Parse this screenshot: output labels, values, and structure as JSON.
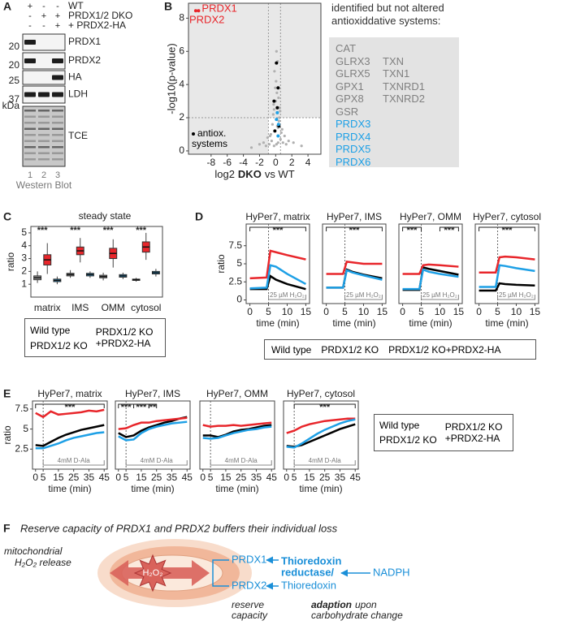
{
  "panel_labels": [
    "A",
    "B",
    "C",
    "D",
    "E",
    "F"
  ],
  "western_blot": {
    "conditions": [
      {
        "label": "WT",
        "signs": [
          "+",
          "-",
          "-"
        ]
      },
      {
        "label": "PRDX1/2 DKO",
        "signs": [
          "-",
          "+",
          "+"
        ]
      },
      {
        "label": "+ PRDX2-HA",
        "signs": [
          "-",
          "-",
          "+"
        ]
      }
    ],
    "bands": [
      {
        "label": "PRDX1",
        "marker": 20,
        "present": [
          true,
          false,
          false
        ]
      },
      {
        "label": "PRDX2",
        "marker": 20,
        "present": [
          true,
          false,
          true
        ]
      },
      {
        "label": "HA",
        "marker": 25,
        "present": [
          false,
          false,
          true
        ]
      },
      {
        "label": "LDH",
        "marker": 37,
        "present": [
          true,
          true,
          true
        ]
      },
      {
        "label": "TCE",
        "present": [
          true,
          true,
          true
        ]
      }
    ],
    "marker_unit": "kDa",
    "lanes": [
      1,
      2,
      3
    ],
    "caption": "Western Blot"
  },
  "antioxidant_list": {
    "title": "identified but not altered antioxiddative systems:",
    "columns": [
      [
        "CAT",
        "GLRX3",
        "GLRX5",
        "GPX1",
        "GPX8",
        "GSR"
      ],
      [
        "TXN",
        "TXN1",
        "TXNRD1",
        "TXNRD2"
      ]
    ],
    "highlighted": [
      "PRDX3",
      "PRDX4",
      "PRDX5",
      "PRDX6"
    ]
  },
  "chart_data": [
    {
      "type": "scatter",
      "xlabel": [
        "log2",
        "DKO",
        "vs WT"
      ],
      "ylabel": "-log10(p-value)",
      "xlim": [
        -10.8,
        5.6
      ],
      "ylim": [
        -0.2,
        8.9
      ],
      "xticks": [
        -8,
        -6,
        -4,
        -2,
        0,
        2,
        4
      ],
      "yticks": [
        0,
        2,
        4,
        6,
        8
      ],
      "thresholds": {
        "x": [
          -0.9,
          0.6
        ],
        "y": 2
      },
      "series": [
        {
          "color": "#b0b0b0",
          "x": [
            -0.2,
            0.1,
            0.3,
            -0.5,
            0.6,
            -0.8,
            0.9,
            -1.2,
            1.3,
            -0.1,
            0.2,
            0.4,
            -0.3,
            0.5,
            -0.6,
            0.7,
            -1.0,
            1.1,
            -1.5,
            1.6,
            0.0,
            0.15,
            -0.25,
            0.35,
            -0.4,
            0.45,
            0.05,
            -0.15,
            0.25,
            -0.05,
            0.55,
            -0.7,
            0.8,
            -2.0,
            2.2,
            0.1,
            -0.2,
            0.3,
            3.2,
            -3.0
          ],
          "values": [
            0.3,
            0.4,
            0.5,
            0.6,
            0.7,
            0.4,
            0.5,
            0.3,
            0.4,
            1.2,
            1.5,
            1.8,
            2.2,
            2.6,
            1.0,
            1.1,
            0.8,
            0.9,
            0.5,
            0.6,
            3.0,
            3.5,
            2.8,
            3.2,
            1.6,
            2.0,
            4.2,
            4.8,
            5.4,
            3.8,
            2.4,
            0.9,
            1.3,
            0.4,
            0.5,
            6.0,
            2.5,
            1.4,
            0.3,
            0.2
          ]
        },
        {
          "name": "antiox. systems",
          "color": "#000000",
          "x": [
            0.1,
            0.3,
            -0.2,
            0.4,
            0.2,
            -0.1
          ],
          "values": [
            5.3,
            3.8,
            3.0,
            1.5,
            2.6,
            1.2
          ]
        },
        {
          "color": "#1ea0e6",
          "x": [
            0.2,
            0.35,
            0.1,
            0.3
          ],
          "values": [
            2.3,
            1.6,
            1.9,
            0.9
          ]
        },
        {
          "color": "#e8262b",
          "names": [
            "PRDX1",
            "PRDX2"
          ],
          "x": [
            -9.9,
            -9.55
          ],
          "values": [
            8.45,
            8.45
          ]
        }
      ]
    },
    {
      "type": "box",
      "title": "steady state",
      "ylabel": "ratio",
      "categories": [
        "matrix",
        "IMS",
        "OMM",
        "cytosol"
      ],
      "ylim": [
        0,
        5.5
      ],
      "yticks": [
        1,
        2,
        3,
        4,
        5
      ],
      "annotations": [
        "***",
        "***",
        "***",
        "***"
      ],
      "series": [
        {
          "name": "Wild type",
          "color": "#000000",
          "box_color": "#9a9a9a",
          "boxes": [
            {
              "low": 1.1,
              "q1": 1.35,
              "median": 1.5,
              "q3": 1.65,
              "high": 2.0
            },
            {
              "low": 1.5,
              "q1": 1.65,
              "median": 1.75,
              "q3": 1.85,
              "high": 2.1
            },
            {
              "low": 1.3,
              "q1": 1.5,
              "median": 1.6,
              "q3": 1.7,
              "high": 1.9
            },
            {
              "low": 1.2,
              "q1": 1.3,
              "median": 1.35,
              "q3": 1.4,
              "high": 1.5
            }
          ]
        },
        {
          "name": "PRDX1/2 KO",
          "color": "#e8262b",
          "box_color": "#e8262b",
          "boxes": [
            {
              "low": 1.8,
              "q1": 2.5,
              "median": 2.9,
              "q3": 3.3,
              "high": 4.2
            },
            {
              "low": 2.7,
              "q1": 3.3,
              "median": 3.6,
              "q3": 3.9,
              "high": 4.6
            },
            {
              "low": 2.3,
              "q1": 3.0,
              "median": 3.4,
              "q3": 3.8,
              "high": 4.5
            },
            {
              "low": 2.9,
              "q1": 3.5,
              "median": 3.9,
              "q3": 4.3,
              "high": 5.0
            }
          ]
        },
        {
          "name": "PRDX1/2 KO +PRDX2-HA",
          "color": "#1ea0e6",
          "box_color": "#1ea0e6",
          "boxes": [
            {
              "low": 1.0,
              "q1": 1.2,
              "median": 1.3,
              "q3": 1.4,
              "high": 1.6
            },
            {
              "low": 1.5,
              "q1": 1.65,
              "median": 1.75,
              "q3": 1.85,
              "high": 2.0
            },
            {
              "low": 1.4,
              "q1": 1.55,
              "median": 1.65,
              "q3": 1.75,
              "high": 1.9
            },
            {
              "low": 1.6,
              "q1": 1.8,
              "median": 1.9,
              "q3": 2.0,
              "high": 2.2
            }
          ]
        }
      ]
    },
    {
      "type": "line",
      "title": "HyPer7, matrix",
      "ylabel": "ratio",
      "xlabel": "time (min)",
      "x": [
        0,
        4.5,
        5.5,
        7,
        10,
        15
      ],
      "xlim": [
        -1,
        16
      ],
      "xticks": [
        0,
        5,
        10,
        15
      ],
      "ylim": [
        -0.5,
        10.5
      ],
      "yticks": [
        0,
        2.5,
        5,
        7.5
      ],
      "treatment": {
        "label": "25 µM H₂O₂",
        "x": [
          5,
          15
        ]
      },
      "significance": [
        {
          "label": "***",
          "x": [
            0,
            15
          ]
        }
      ],
      "series": [
        {
          "name": "Wild type",
          "color": "#000000",
          "values": [
            1.5,
            1.5,
            3.3,
            2.8,
            2.2,
            1.5
          ]
        },
        {
          "name": "PRDX1/2 KO",
          "color": "#e8262b",
          "values": [
            3.0,
            3.1,
            6.8,
            6.6,
            6.2,
            5.6
          ]
        },
        {
          "name": "PRDX1/2 KO+PRDX2-HA",
          "color": "#1ea0e6",
          "values": [
            1.6,
            1.7,
            4.8,
            4.6,
            3.6,
            2.2
          ]
        }
      ]
    },
    {
      "type": "line",
      "title": "HyPer7, IMS",
      "xlabel": "time (min)",
      "x": [
        0,
        4.5,
        5.5,
        7,
        10,
        15
      ],
      "xlim": [
        -1,
        16
      ],
      "xticks": [
        0,
        5,
        10,
        15
      ],
      "ylim": [
        -0.5,
        10.5
      ],
      "treatment": {
        "label": "25 µM H₂O₂",
        "x": [
          5,
          15
        ]
      },
      "significance": [
        {
          "label": "***",
          "x": [
            0,
            15
          ]
        }
      ],
      "series": [
        {
          "color": "#000000",
          "values": [
            1.7,
            1.7,
            4.2,
            3.9,
            3.5,
            3.0
          ]
        },
        {
          "color": "#e8262b",
          "values": [
            3.6,
            3.6,
            5.3,
            5.2,
            5.0,
            5.0
          ]
        },
        {
          "color": "#1ea0e6",
          "values": [
            1.7,
            1.7,
            4.1,
            3.8,
            3.4,
            2.8
          ]
        }
      ]
    },
    {
      "type": "line",
      "title": "HyPer7, OMM",
      "xlabel": "time (min)",
      "x": [
        0,
        4.5,
        5.5,
        7,
        10,
        15
      ],
      "xlim": [
        -1,
        16
      ],
      "xticks": [
        0,
        5,
        10,
        15
      ],
      "ylim": [
        -0.5,
        10.5
      ],
      "treatment": {
        "label": "25 µM H₂O₂",
        "x": [
          5,
          15
        ]
      },
      "significance": [
        {
          "label": "***",
          "x": [
            0,
            5
          ]
        },
        {
          "label": "***",
          "x": [
            10,
            15
          ]
        }
      ],
      "series": [
        {
          "color": "#000000",
          "values": [
            1.4,
            1.4,
            4.5,
            4.3,
            4.0,
            3.5
          ]
        },
        {
          "color": "#e8262b",
          "values": [
            3.6,
            3.6,
            4.8,
            4.9,
            4.8,
            4.6
          ]
        },
        {
          "color": "#1ea0e6",
          "values": [
            1.5,
            1.5,
            4.2,
            3.9,
            3.6,
            3.2
          ]
        }
      ]
    },
    {
      "type": "line",
      "title": "HyPer7, cytosol",
      "xlabel": "time (min)",
      "x": [
        0,
        4.5,
        5.5,
        7,
        10,
        15
      ],
      "xlim": [
        -1,
        16
      ],
      "xticks": [
        0,
        5,
        10,
        15
      ],
      "ylim": [
        -0.5,
        10.5
      ],
      "treatment": {
        "label": "25 µM H₂O₂",
        "x": [
          5,
          15
        ]
      },
      "significance": [
        {
          "label": "***",
          "x": [
            0,
            15
          ]
        }
      ],
      "series": [
        {
          "color": "#000000",
          "values": [
            1.3,
            1.3,
            2.3,
            2.2,
            2.1,
            2.0
          ]
        },
        {
          "color": "#e8262b",
          "values": [
            3.8,
            3.8,
            5.9,
            6.0,
            5.9,
            5.6
          ]
        },
        {
          "color": "#1ea0e6",
          "values": [
            1.8,
            1.8,
            4.8,
            4.7,
            4.4,
            4.0
          ]
        }
      ]
    },
    {
      "type": "line",
      "title": "HyPer7, matrix",
      "ylabel": "ratio",
      "xlabel": "time (min)",
      "x": [
        0,
        5,
        10,
        15,
        20,
        25,
        30,
        35,
        40,
        45
      ],
      "xlim": [
        -2,
        47
      ],
      "xticks": [
        0,
        5,
        15,
        25,
        35,
        45
      ],
      "ylim": [
        0,
        8.5
      ],
      "yticks": [
        2.5,
        5,
        7.5
      ],
      "treatment": {
        "label": "4mM D-Ala",
        "x": [
          5,
          45
        ]
      },
      "significance": [
        {
          "label": "***",
          "x": [
            0,
            45
          ]
        }
      ],
      "series": [
        {
          "name": "Wild type",
          "color": "#000000",
          "values": [
            3.0,
            2.9,
            3.4,
            3.9,
            4.3,
            4.6,
            4.9,
            5.1,
            5.3,
            5.5
          ]
        },
        {
          "name": "PRDX1/2 KO",
          "color": "#e8262b",
          "values": [
            7.0,
            6.5,
            7.2,
            6.8,
            6.9,
            7.0,
            7.1,
            7.3,
            7.2,
            7.4
          ]
        },
        {
          "name": "PRDX1/2 KO +PRDX2-HA",
          "color": "#1ea0e6",
          "values": [
            2.6,
            2.6,
            2.9,
            3.2,
            3.6,
            3.9,
            4.1,
            4.3,
            4.5,
            4.6
          ]
        }
      ]
    },
    {
      "type": "line",
      "title": "HyPer7, IMS",
      "xlabel": "time (min)",
      "x": [
        0,
        5,
        10,
        15,
        20,
        25,
        30,
        35,
        40,
        45
      ],
      "xlim": [
        -2,
        47
      ],
      "xticks": [
        0,
        5,
        15,
        25,
        35,
        45
      ],
      "ylim": [
        0,
        8.5
      ],
      "treatment": {
        "label": "4mM D-Ala",
        "x": [
          5,
          45
        ]
      },
      "significance": [
        {
          "label": "***",
          "x": [
            0,
            10
          ]
        },
        {
          "label": "***",
          "x": [
            10,
            20
          ]
        },
        {
          "label": "**",
          "x": [
            20,
            25
          ]
        }
      ],
      "series": [
        {
          "color": "#000000",
          "values": [
            4.5,
            4.0,
            4.2,
            4.8,
            5.2,
            5.5,
            5.8,
            6.0,
            6.3,
            6.5
          ]
        },
        {
          "color": "#e8262b",
          "values": [
            5.0,
            5.1,
            5.5,
            5.8,
            5.8,
            6.0,
            6.1,
            6.2,
            6.3,
            6.4
          ]
        },
        {
          "color": "#1ea0e6",
          "values": [
            4.1,
            3.6,
            3.7,
            4.5,
            5.0,
            5.3,
            5.5,
            5.7,
            5.8,
            5.9
          ]
        }
      ]
    },
    {
      "type": "line",
      "title": "HyPer7, OMM",
      "xlabel": "time (min)",
      "x": [
        0,
        5,
        10,
        15,
        20,
        25,
        30,
        35,
        40,
        45
      ],
      "xlim": [
        -2,
        47
      ],
      "xticks": [
        0,
        5,
        15,
        25,
        35,
        45
      ],
      "ylim": [
        0,
        8.5
      ],
      "treatment": {
        "label": "4mM D-Ala",
        "x": [
          5,
          45
        ]
      },
      "significance": [],
      "series": [
        {
          "color": "#000000",
          "values": [
            4.2,
            4.2,
            4.0,
            4.3,
            4.7,
            4.9,
            5.0,
            5.2,
            5.4,
            5.5
          ]
        },
        {
          "color": "#e8262b",
          "values": [
            5.5,
            5.3,
            5.4,
            5.4,
            5.5,
            5.4,
            5.5,
            5.6,
            5.7,
            5.8
          ]
        },
        {
          "color": "#1ea0e6",
          "values": [
            3.9,
            3.8,
            3.9,
            4.2,
            4.5,
            4.7,
            4.9,
            5.0,
            5.2,
            5.3
          ]
        }
      ]
    },
    {
      "type": "line",
      "title": "HyPer7, cytosol",
      "xlabel": "time (min)",
      "x": [
        0,
        5,
        10,
        15,
        20,
        25,
        30,
        35,
        40,
        45
      ],
      "xlim": [
        -2,
        47
      ],
      "xticks": [
        0,
        5,
        15,
        25,
        35,
        45
      ],
      "ylim": [
        0,
        8.5
      ],
      "treatment": {
        "label": "4mM D-Ala",
        "x": [
          5,
          45
        ]
      },
      "significance": [
        {
          "label": "***",
          "x": [
            5,
            45
          ]
        }
      ],
      "series": [
        {
          "color": "#000000",
          "values": [
            2.9,
            2.8,
            3.0,
            3.4,
            3.8,
            4.2,
            4.6,
            5.0,
            5.3,
            5.6
          ]
        },
        {
          "color": "#e8262b",
          "values": [
            4.5,
            4.8,
            5.3,
            5.6,
            5.8,
            6.0,
            6.1,
            6.2,
            6.3,
            6.3
          ]
        },
        {
          "color": "#1ea0e6",
          "values": [
            2.8,
            2.7,
            3.2,
            3.8,
            4.4,
            4.9,
            5.3,
            5.7,
            6.0,
            6.2
          ]
        }
      ]
    }
  ],
  "diagram": {
    "title": "Reserve capacity of PRDX1 and PRDX2 buffers their individual loss",
    "source_label": [
      "mitochondrial",
      "H₂O₂ release"
    ],
    "center_label": "H₂O₂",
    "nodes": [
      "PRDX1",
      "PRDX2"
    ],
    "reductase": [
      "Thioredoxin",
      "reductase/"
    ],
    "thioredoxin": "Thioredoxin",
    "cofactor": "NADPH",
    "reserve_label": [
      "reserve",
      "capacity"
    ],
    "adaption_label": [
      "adaption",
      "upon",
      "carbohydrate change"
    ]
  }
}
